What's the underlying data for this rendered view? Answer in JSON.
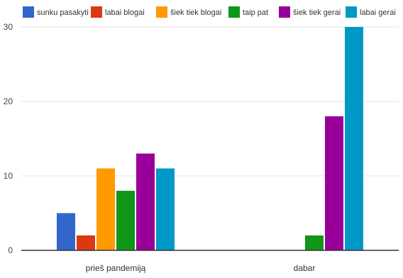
{
  "chart_data": {
    "type": "bar",
    "categories": [
      "prieš pandemiją",
      "dabar"
    ],
    "series": [
      {
        "name": "sunku pasakyti",
        "color": "#3366cc",
        "values": [
          5,
          0
        ]
      },
      {
        "name": "labai blogai",
        "color": "#dc3912",
        "values": [
          2,
          0
        ]
      },
      {
        "name": "šiek tiek blogai",
        "color": "#ff9900",
        "values": [
          11,
          0
        ]
      },
      {
        "name": "taip pat",
        "color": "#109618",
        "values": [
          8,
          2
        ]
      },
      {
        "name": "šiek tiek gerai",
        "color": "#990099",
        "values": [
          13,
          18
        ]
      },
      {
        "name": "labai gerai",
        "color": "#0099c6",
        "values": [
          11,
          30
        ]
      }
    ],
    "ylim": [
      0,
      30
    ],
    "yticks": [
      "0",
      "10",
      "20",
      "30"
    ],
    "grid": true,
    "legend_position": "top",
    "title": "",
    "xlabel": "",
    "ylabel": ""
  }
}
